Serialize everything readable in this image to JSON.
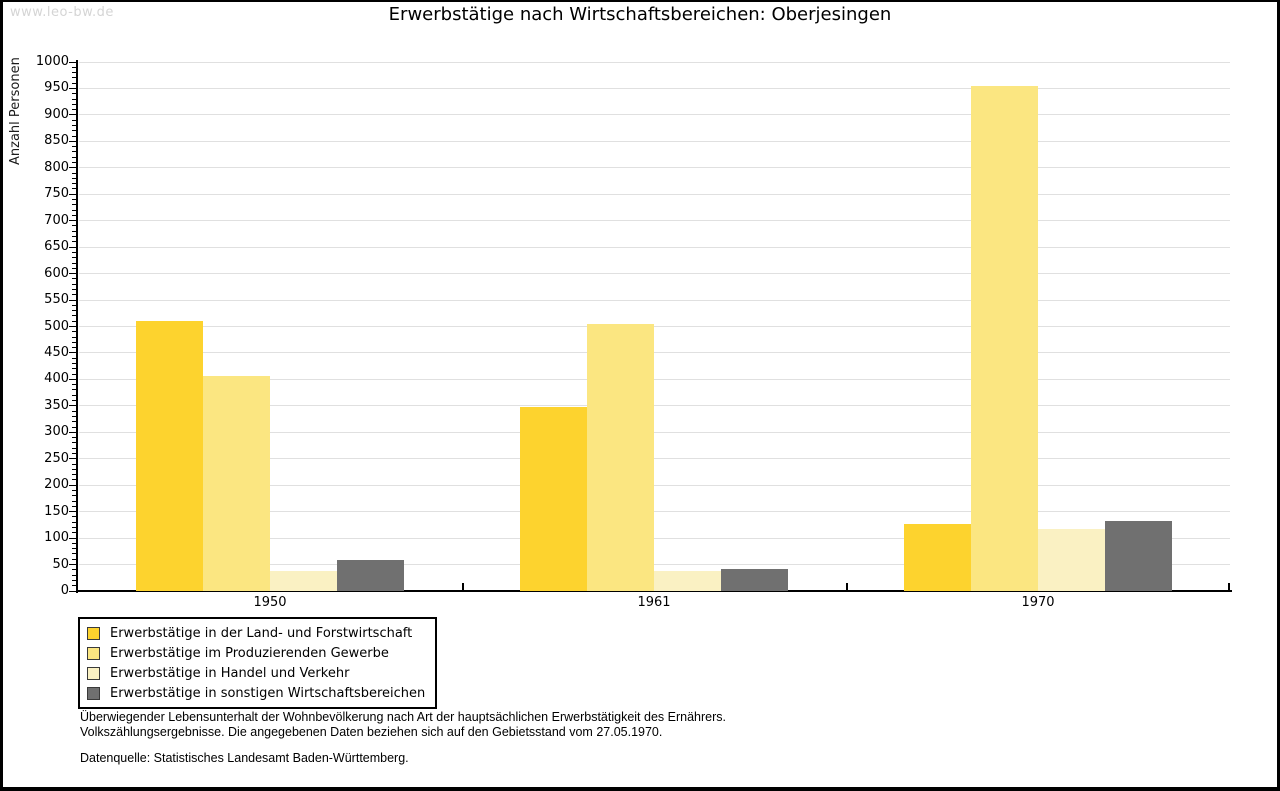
{
  "watermark": "www.leo-bw.de",
  "title": "Erwerbstätige nach Wirtschaftsbereichen: Oberjesingen",
  "chart_data": {
    "type": "bar",
    "categories": [
      "1950",
      "1961",
      "1970"
    ],
    "series": [
      {
        "name": "Erwerbstätige in der Land- und Forstwirtschaft",
        "color": "#fdd32e",
        "values": [
          510,
          348,
          127
        ]
      },
      {
        "name": "Erwerbstätige im Produzierenden Gewerbe",
        "color": "#fbe681",
        "values": [
          406,
          505,
          955
        ]
      },
      {
        "name": "Erwerbstätige in Handel und Verkehr",
        "color": "#faf1c3",
        "values": [
          37,
          38,
          117
        ]
      },
      {
        "name": "Erwerbstätige in sonstigen Wirtschaftsbereichen",
        "color": "#707070",
        "values": [
          59,
          42,
          132
        ]
      }
    ],
    "title": "Erwerbstätige nach Wirtschaftsbereichen: Oberjesingen",
    "xlabel": "",
    "ylabel": "Anzahl Personen",
    "ylim": [
      0,
      1000
    ],
    "ytick_step": 50,
    "minor_tick_step": 10,
    "grid": true,
    "legend_position": "bottom-left",
    "grid_color": "#e0e0e0",
    "axis_color": "#000000"
  },
  "footnotes": {
    "line1": "Überwiegender Lebensunterhalt der Wohnbevölkerung nach Art der hauptsächlichen Erwerbstätigkeit des Ernährers.",
    "line2": "Volkszählungsergebnisse. Die angegebenen Daten beziehen sich auf den Gebietsstand vom 27.05.1970.",
    "source": "Datenquelle: Statistisches Landesamt Baden-Württemberg."
  }
}
